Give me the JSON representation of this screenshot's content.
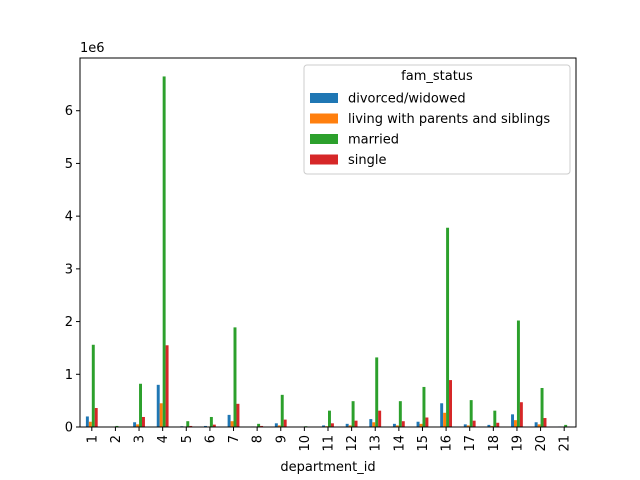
{
  "chart_data": {
    "type": "bar",
    "xlabel": "department_id",
    "ylabel": "",
    "ylim": [
      0,
      7000000
    ],
    "y_scale_label": "1e6",
    "y_ticks": [
      0,
      1000000,
      2000000,
      3000000,
      4000000,
      5000000,
      6000000
    ],
    "y_tick_labels": [
      "0",
      "1",
      "2",
      "3",
      "4",
      "5",
      "6"
    ],
    "categories": [
      "1",
      "2",
      "3",
      "4",
      "5",
      "6",
      "7",
      "8",
      "9",
      "10",
      "11",
      "12",
      "13",
      "14",
      "15",
      "16",
      "17",
      "18",
      "19",
      "20",
      "21"
    ],
    "legend": {
      "title": "fam_status",
      "placement": "top-right"
    },
    "grid": false,
    "series": [
      {
        "name": "divorced/widowed",
        "color": "#1f77b4",
        "values": [
          200000,
          5000,
          90000,
          800000,
          15000,
          20000,
          230000,
          10000,
          70000,
          3000,
          30000,
          60000,
          150000,
          60000,
          100000,
          450000,
          50000,
          40000,
          240000,
          90000,
          10000
        ]
      },
      {
        "name": "living with parents and siblings",
        "color": "#ff7f0e",
        "values": [
          100000,
          2000,
          50000,
          450000,
          5000,
          10000,
          110000,
          5000,
          30000,
          1000,
          15000,
          30000,
          90000,
          30000,
          60000,
          270000,
          30000,
          20000,
          130000,
          50000,
          5000
        ]
      },
      {
        "name": "married",
        "color": "#2ca02c",
        "values": [
          1560000,
          20000,
          820000,
          6650000,
          110000,
          190000,
          1890000,
          60000,
          610000,
          15000,
          310000,
          490000,
          1320000,
          490000,
          760000,
          3780000,
          510000,
          310000,
          2020000,
          740000,
          40000
        ]
      },
      {
        "name": "single",
        "color": "#d62728",
        "values": [
          360000,
          5000,
          190000,
          1550000,
          20000,
          45000,
          440000,
          20000,
          140000,
          5000,
          70000,
          120000,
          310000,
          110000,
          180000,
          890000,
          120000,
          80000,
          470000,
          170000,
          10000
        ]
      }
    ]
  }
}
